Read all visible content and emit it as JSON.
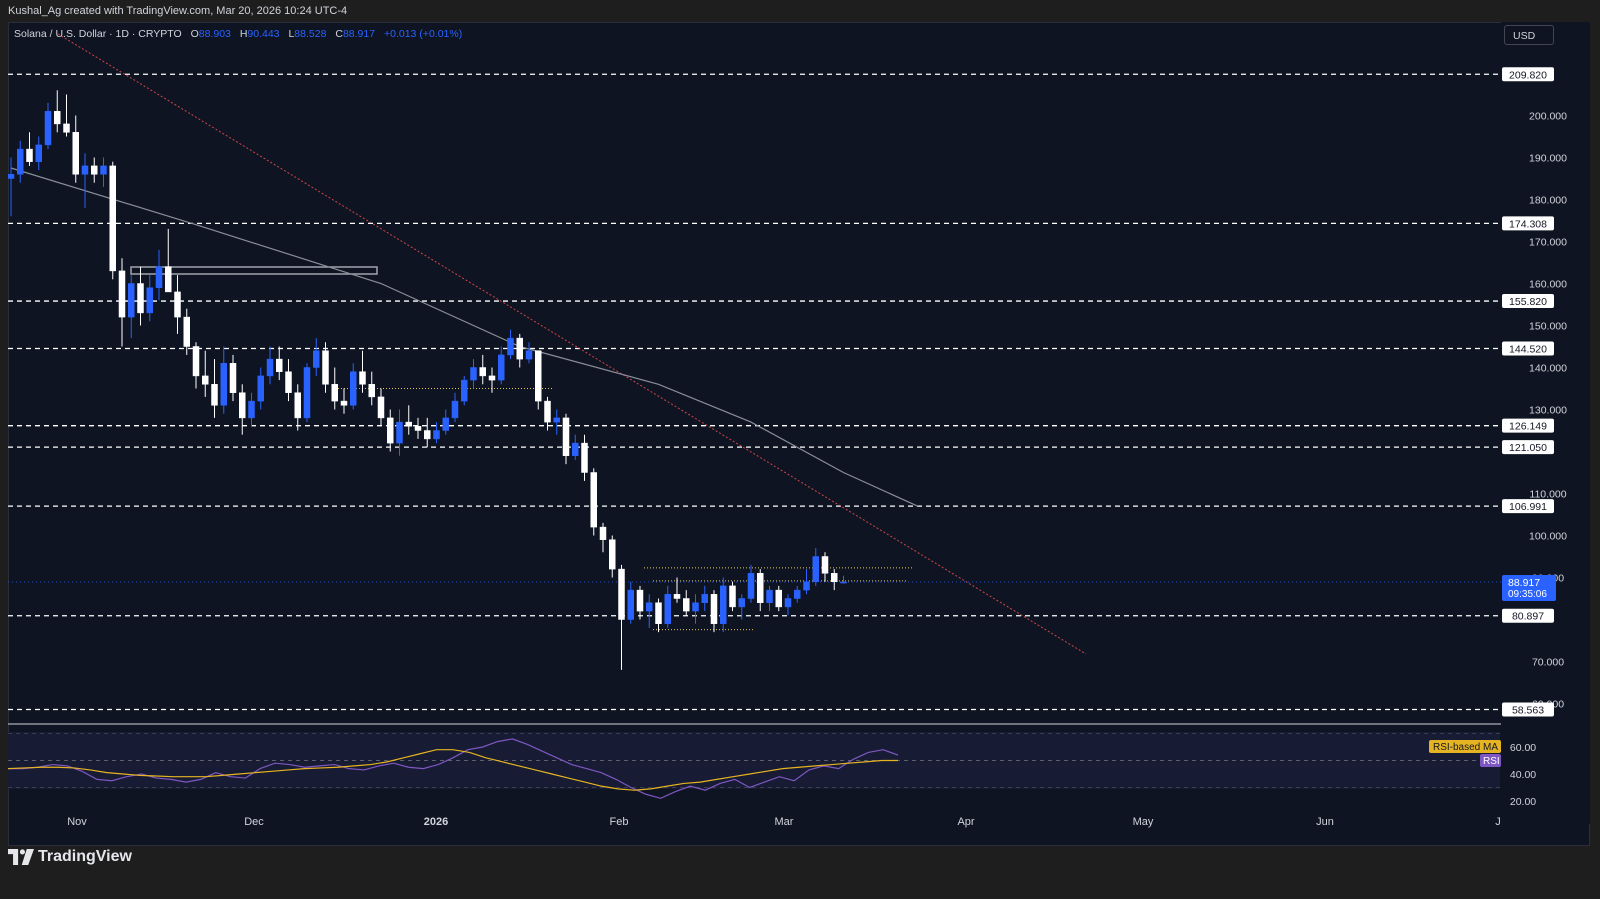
{
  "header": {
    "credit": "Kushal_Ag created with TradingView.com, Mar 20, 2026 10:24 UTC-4"
  },
  "legend": {
    "symbol": "Solana / U.S. Dollar · 1D · CRYPTO",
    "o_label": "O",
    "o_value": "88.903",
    "h_label": "H",
    "h_value": "90.443",
    "l_label": "L",
    "l_value": "88.528",
    "c_label": "C",
    "c_value": "88.917",
    "change": "+0.013 (+0.01%)"
  },
  "currency": "USD",
  "footer": {
    "brand": "TradingView"
  },
  "colors": {
    "background": "#0f1422",
    "up_candle": "#2962ff",
    "down_candle": "#ffffff",
    "ma_line": "#8a8e99",
    "trendline": "#ff5252",
    "range_box": "#e6c34a",
    "rsi_line": "#7e57c2",
    "rsi_ma": "#e6b422",
    "price_tag": "#2962ff"
  },
  "chart_data": [
    {
      "type": "candlestick",
      "symbol": "SOLUSD",
      "interval": "1D",
      "ylim": [
        57,
        216
      ],
      "y_ticks": [
        200,
        190,
        180,
        170,
        160,
        150,
        140,
        130,
        110,
        100,
        90,
        70,
        60
      ],
      "y_tick_labels": [
        "200.000",
        "190.000",
        "180.000",
        "170.000",
        "160.000",
        "150.000",
        "140.000",
        "130.000",
        "110.000",
        "100.000",
        "90.000",
        "70.000",
        "60.000"
      ],
      "x_labels": [
        "Nov",
        "Dec",
        "2026",
        "Feb",
        "Mar",
        "Apr",
        "May",
        "Jun",
        "J"
      ],
      "horizontal_levels": [
        {
          "value": 209.82,
          "label": "209.820"
        },
        {
          "value": 174.308,
          "label": "174.308"
        },
        {
          "value": 155.82,
          "label": "155.820"
        },
        {
          "value": 144.52,
          "label": "144.520"
        },
        {
          "value": 126.149,
          "label": "126.149"
        },
        {
          "value": 121.05,
          "label": "121.050"
        },
        {
          "value": 106.991,
          "label": "106.991"
        },
        {
          "value": 80.897,
          "label": "80.897"
        },
        {
          "value": 58.563,
          "label": "58.563"
        }
      ],
      "last_price": {
        "value": 88.917,
        "label": "88.917",
        "countdown": "09:35:06"
      },
      "series": [
        {
          "name": "",
          "kind": "ohlc",
          "values": [
            [
              185.0,
              190.0,
              176.0,
              186.0
            ],
            [
              186.0,
              194.0,
              184.0,
              192.0
            ],
            [
              192.0,
              196.0,
              188.0,
              189.0
            ],
            [
              189.0,
              195.0,
              187.0,
              193.0
            ],
            [
              193.0,
              203.0,
              192.0,
              201.0
            ],
            [
              201.0,
              206.0,
              196.0,
              198.0
            ],
            [
              198.0,
              205.0,
              195.0,
              196.0
            ],
            [
              196.0,
              200.0,
              184.0,
              186.0
            ],
            [
              186.0,
              191.0,
              178.0,
              188.0
            ],
            [
              188.0,
              190.0,
              184.0,
              186.0
            ],
            [
              186.0,
              190.0,
              183.0,
              188.0
            ],
            [
              188.0,
              189.0,
              161.0,
              163.0
            ],
            [
              163.0,
              166.0,
              145.0,
              152.0
            ],
            [
              152.0,
              162.0,
              147.0,
              160.0
            ],
            [
              160.0,
              164.0,
              150.0,
              153.0
            ],
            [
              153.0,
              162.0,
              151.0,
              159.0
            ],
            [
              159.0,
              168.0,
              156.0,
              164.0
            ],
            [
              164.0,
              173.0,
              160.0,
              158.0
            ],
            [
              158.0,
              162.0,
              148.0,
              152.0
            ],
            [
              152.0,
              154.0,
              143.0,
              145.0
            ],
            [
              145.0,
              146.0,
              135.0,
              138.0
            ],
            [
              138.0,
              144.0,
              133.0,
              136.0
            ],
            [
              136.0,
              142.0,
              128.0,
              131.0
            ],
            [
              131.0,
              145.0,
              129.0,
              141.0
            ],
            [
              141.0,
              143.0,
              132.0,
              134.0
            ],
            [
              134.0,
              136.0,
              124.0,
              128.0
            ],
            [
              128.0,
              134.0,
              126.0,
              132.0
            ],
            [
              132.0,
              140.0,
              130.0,
              138.0
            ],
            [
              138.0,
              145.0,
              136.0,
              142.0
            ],
            [
              142.0,
              145.0,
              137.0,
              139.0
            ],
            [
              139.0,
              142.0,
              132.0,
              134.0
            ],
            [
              134.0,
              136.0,
              125.0,
              128.0
            ],
            [
              128.0,
              141.0,
              127.0,
              140.0
            ],
            [
              140.0,
              147.0,
              138.0,
              144.0
            ],
            [
              144.0,
              146.0,
              134.0,
              136.0
            ],
            [
              136.0,
              140.0,
              130.0,
              132.0
            ],
            [
              132.0,
              135.0,
              129.0,
              131.0
            ],
            [
              131.0,
              141.0,
              130.0,
              139.0
            ],
            [
              139.0,
              144.0,
              134.0,
              136.0
            ],
            [
              136.0,
              139.0,
              131.0,
              133.0
            ],
            [
              133.0,
              135.0,
              126.0,
              128.0
            ],
            [
              128.0,
              130.0,
              120.0,
              122.0
            ],
            [
              122.0,
              130.0,
              119.0,
              127.0
            ],
            [
              127.0,
              131.0,
              124.0,
              126.0
            ],
            [
              126.0,
              128.0,
              123.0,
              125.0
            ],
            [
              125.0,
              128.0,
              121.0,
              123.0
            ],
            [
              123.0,
              127.0,
              122.0,
              125.0
            ],
            [
              125.0,
              130.0,
              124.0,
              128.0
            ],
            [
              128.0,
              134.0,
              127.0,
              132.0
            ],
            [
              132.0,
              138.0,
              131.0,
              137.0
            ],
            [
              137.0,
              142.0,
              135.0,
              140.0
            ],
            [
              140.0,
              143.0,
              136.0,
              138.0
            ],
            [
              138.0,
              140.0,
              134.0,
              137.0
            ],
            [
              137.0,
              145.0,
              136.0,
              143.0
            ],
            [
              143.0,
              149.0,
              142.0,
              147.0
            ],
            [
              147.0,
              148.0,
              140.0,
              142.0
            ],
            [
              142.0,
              146.0,
              141.0,
              144.0
            ],
            [
              144.0,
              144.0,
              130.0,
              132.0
            ],
            [
              132.0,
              133.0,
              125.0,
              127.0
            ],
            [
              127.0,
              130.0,
              124.0,
              128.0
            ],
            [
              128.0,
              129.0,
              117.0,
              119.0
            ],
            [
              119.0,
              124.0,
              118.0,
              122.0
            ],
            [
              122.0,
              124.0,
              113.0,
              115.0
            ],
            [
              115.0,
              116.0,
              100.0,
              102.0
            ],
            [
              102.0,
              103.0,
              96.0,
              99.0
            ],
            [
              99.0,
              100.0,
              90.0,
              92.0
            ],
            [
              92.0,
              93.0,
              68.0,
              80.0
            ],
            [
              80.0,
              89.0,
              79.0,
              87.0
            ],
            [
              87.0,
              88.0,
              80.0,
              82.0
            ],
            [
              82.0,
              86.0,
              78.0,
              84.0
            ],
            [
              84.0,
              85.0,
              77.0,
              79.0
            ],
            [
              79.0,
              88.0,
              78.0,
              86.0
            ],
            [
              86.0,
              90.0,
              84.0,
              85.0
            ],
            [
              85.0,
              87.0,
              81.0,
              82.0
            ],
            [
              82.0,
              86.0,
              79.0,
              84.0
            ],
            [
              84.0,
              88.0,
              82.0,
              86.0
            ],
            [
              86.0,
              87.0,
              77.0,
              79.0
            ],
            [
              79.0,
              90.0,
              77.0,
              88.0
            ],
            [
              88.0,
              89.0,
              82.0,
              83.0
            ],
            [
              83.0,
              86.0,
              80.0,
              85.0
            ],
            [
              85.0,
              93.0,
              84.0,
              91.0
            ],
            [
              91.0,
              92.0,
              82.0,
              84.0
            ],
            [
              84.0,
              88.0,
              82.0,
              87.0
            ],
            [
              87.0,
              88.0,
              82.0,
              83.0
            ],
            [
              83.0,
              86.0,
              81.0,
              85.0
            ],
            [
              85.0,
              88.0,
              84.0,
              87.0
            ],
            [
              87.0,
              92.0,
              86.0,
              89.0
            ],
            [
              89.0,
              97.0,
              88.0,
              95.0
            ],
            [
              95.0,
              96.0,
              89.0,
              91.0
            ],
            [
              91.0,
              92.0,
              87.0,
              89.0
            ],
            [
              88.903,
              90.443,
              88.528,
              88.917
            ]
          ]
        },
        {
          "name": "",
          "kind": "moving_average",
          "points": [
            [
              0,
              187.5
            ],
            [
              20,
              174
            ],
            [
              40,
              160
            ],
            [
              55,
              145
            ],
            [
              70,
              136
            ],
            [
              80,
              127
            ],
            [
              90,
              115
            ],
            [
              98,
              107
            ]
          ]
        }
      ]
    },
    {
      "type": "line",
      "panel": "oscillator",
      "ylim": [
        15,
        72
      ],
      "y_tick_labels": [
        "60.00",
        "40.00",
        "20.00"
      ],
      "y_ticks": [
        60,
        40,
        20
      ],
      "legend": [
        "RSI-based MA",
        "RSI"
      ],
      "series": [
        {
          "name": "RSI",
          "values": [
            44,
            44,
            45,
            47,
            46,
            42,
            36,
            35,
            38,
            40,
            37,
            36,
            34,
            36,
            41,
            38,
            37,
            44,
            48,
            47,
            45,
            46,
            47,
            44,
            43,
            46,
            48,
            45,
            44,
            47,
            52,
            58,
            60,
            64,
            66,
            62,
            57,
            52,
            47,
            44,
            41,
            36,
            30,
            25,
            22,
            27,
            31,
            28,
            33,
            36,
            30,
            34,
            38,
            35,
            43,
            46,
            44,
            51,
            56,
            58,
            54
          ]
        },
        {
          "name": "RSI-based MA",
          "values": [
            44,
            44.5,
            45,
            45,
            44.5,
            43,
            41,
            40,
            39,
            38.5,
            38,
            38,
            38,
            39,
            40,
            41,
            42,
            43,
            44,
            44.5,
            45,
            46,
            47,
            49,
            52,
            55,
            58,
            58,
            56,
            52,
            49,
            46,
            43,
            40,
            37,
            34,
            31,
            29,
            28,
            29,
            31,
            33,
            34,
            36,
            38,
            40,
            42,
            44,
            45,
            46,
            47,
            48,
            49,
            50,
            50
          ]
        }
      ]
    }
  ]
}
